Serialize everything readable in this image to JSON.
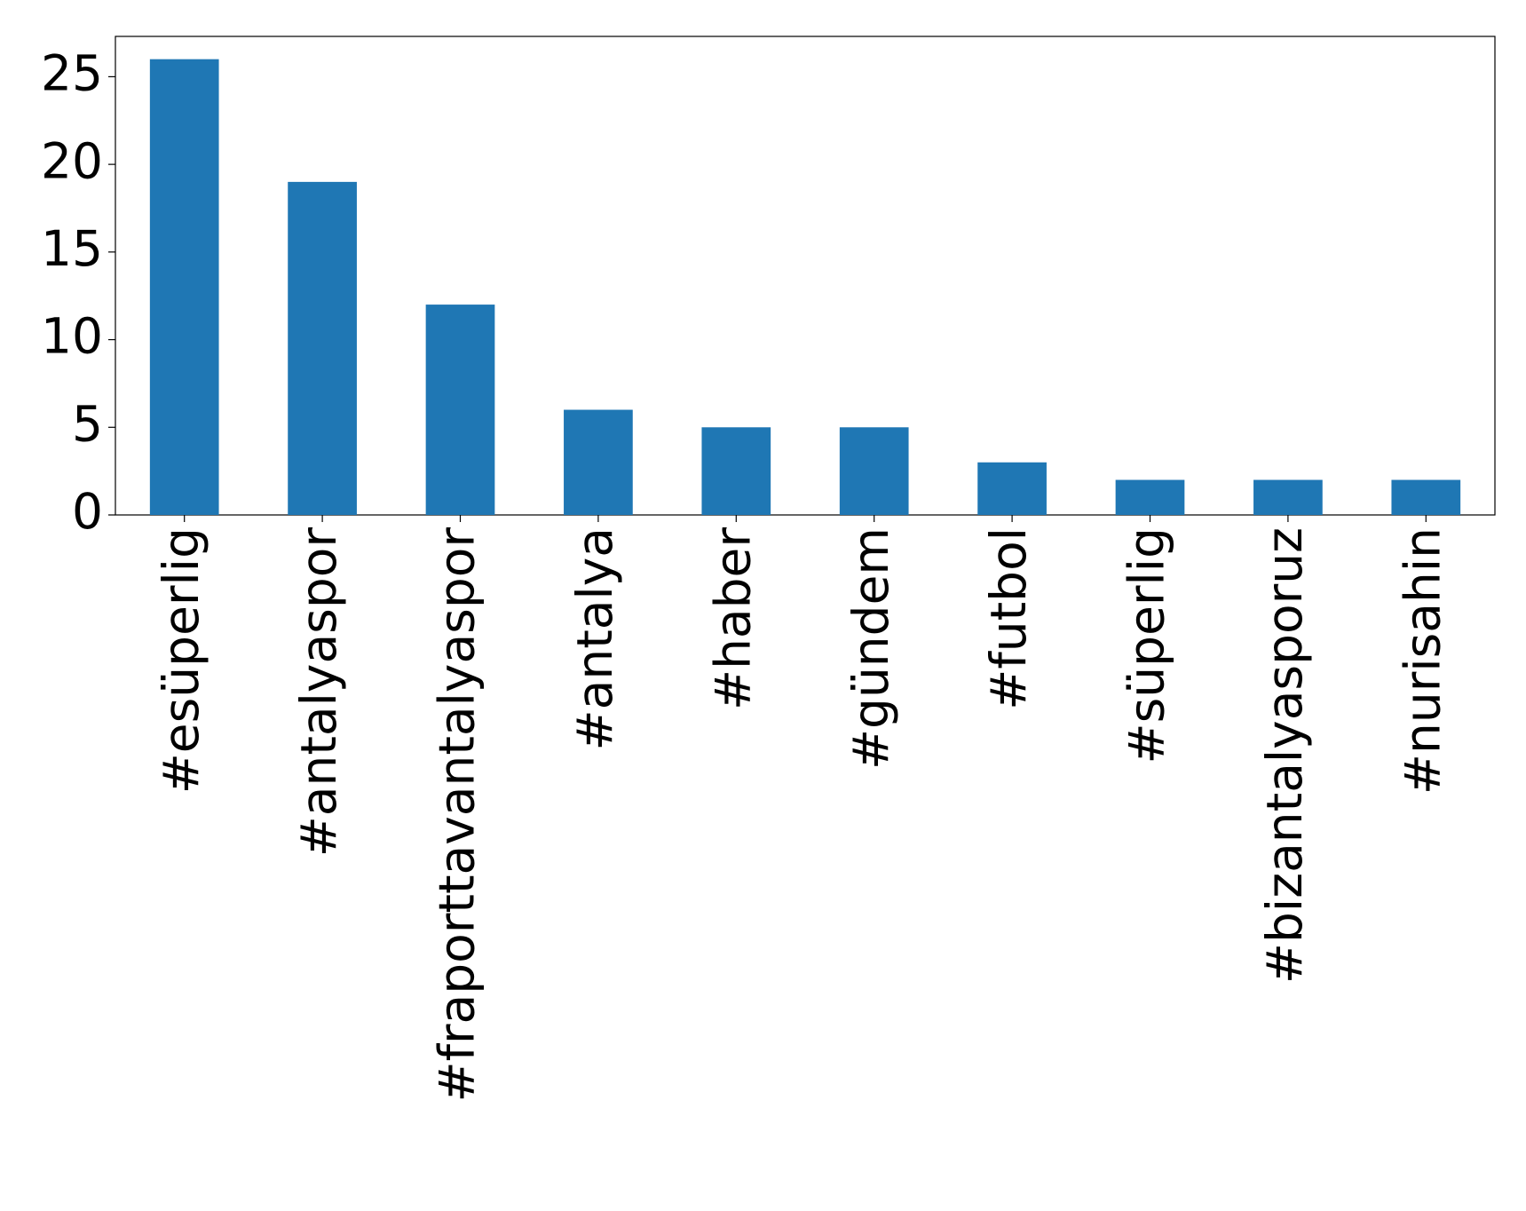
{
  "chart_data": {
    "type": "bar",
    "categories": [
      "#esüperlig",
      "#antalyaspor",
      "#fraporttavantalyaspor",
      "#antalya",
      "#haber",
      "#gündem",
      "#futbol",
      "#süperlig",
      "#bizantalyasporuz",
      "#nurisahin"
    ],
    "values": [
      26,
      19,
      12,
      6,
      5,
      5,
      3,
      2,
      2,
      2
    ],
    "color": "#1f77b4",
    "ylim": [
      0,
      27.3
    ],
    "yticks": [
      0,
      5,
      10,
      15,
      20,
      25
    ],
    "grid": false
  }
}
